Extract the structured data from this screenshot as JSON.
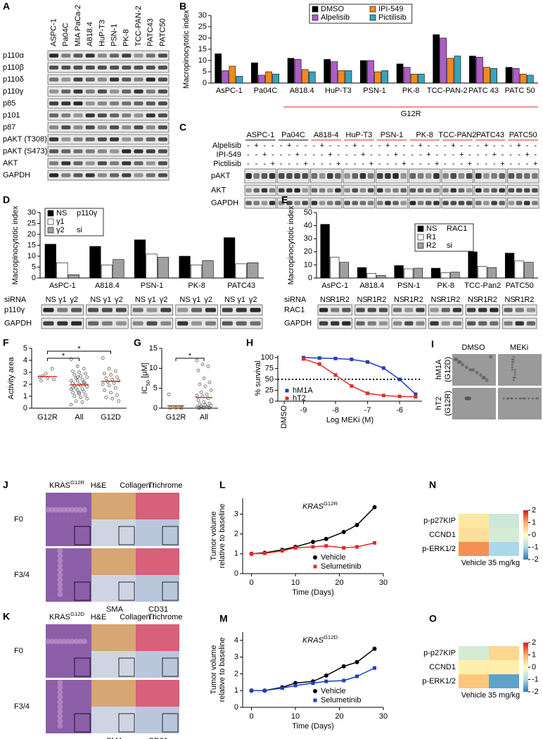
{
  "panel_A": {
    "label": "A",
    "lanes": [
      "ASPC-1",
      "Pa04C",
      "MIA PaCa-2",
      "A818.4",
      "HuP-T3",
      "PSN-1",
      "PK-8",
      "TCC-PAN-2",
      "PATC43",
      "PATC50"
    ],
    "lane_colors": [
      "#000000",
      "#000000",
      "#000000",
      "#e0201b",
      "#e0201b",
      "#e0201b",
      "#e0201b",
      "#e0201b",
      "#e0201b",
      "#e0201b"
    ],
    "rows": [
      "p110α",
      "p110β",
      "p110δ",
      "p110γ",
      "p85",
      "p101",
      "p87",
      "pAKT (T308)",
      "pAKT (S473)",
      "AKT",
      "GAPDH"
    ]
  },
  "panel_C": {
    "label": "C",
    "groups": [
      "ASPC-1",
      "Pa04C",
      "A818-4",
      "HuP-T3",
      "PSN-1",
      "PK-8",
      "TCC-PAN2",
      "PATC43",
      "PATC50"
    ],
    "group_colors": [
      "#000000",
      "#000000",
      "#e0201b",
      "#e0201b",
      "#e0201b",
      "#e0201b",
      "#e0201b",
      "#e0201b",
      "#e0201b"
    ],
    "treatments": [
      {
        "name": "Alpelisib",
        "signs": [
          "-",
          "+",
          "-",
          "-"
        ]
      },
      {
        "name": "IPI-549",
        "signs": [
          "-",
          "-",
          "+",
          "-"
        ]
      },
      {
        "name": "Pictilisib",
        "signs": [
          "-",
          "-",
          "-",
          "+"
        ]
      }
    ],
    "rows": [
      "pAKT",
      "AKT",
      "GAPDH"
    ]
  },
  "panel_I": {
    "label": "I",
    "columns": [
      "DMSO",
      "MEKi"
    ],
    "rows": [
      {
        "name": "hM1A",
        "mutation": "(G12D)",
        "color": "#2233cc"
      },
      {
        "name": "hT2",
        "mutation": "(G12R)",
        "color": "#1a9a3a"
      }
    ]
  },
  "panel_J": {
    "label": "J",
    "title": {
      "base": "KRAS",
      "sup": "G12R"
    },
    "stains": [
      "H&E",
      "Collagen I",
      "Trichrome"
    ],
    "rows": [
      "F0",
      "F3/4"
    ],
    "insets": [
      "SMA",
      "CD31"
    ]
  },
  "panel_K": {
    "label": "K",
    "title": {
      "base": "KRAS",
      "sup": "G12D"
    },
    "stains": [
      "H&E",
      "Collagen I",
      "Trichrome"
    ],
    "rows": [
      "F0",
      "F3/4"
    ],
    "insets": [
      "SMA",
      "CD31"
    ]
  },
  "chart_data": [
    {
      "type": "bar",
      "label": "B",
      "y_label": "Macropinocytotic index",
      "categories": [
        "AsPC-1",
        "Pa04C",
        "A818.4",
        "HuP-T3",
        "PSN-1",
        "PK-8",
        "TCC-PAN-2",
        "PATC 43",
        "PATC 50"
      ],
      "series": [
        {
          "name": "DMSO",
          "color": "#000000",
          "values": [
            13,
            9,
            11,
            10.5,
            10,
            8.5,
            21.5,
            12,
            7
          ]
        },
        {
          "name": "Alpelisib",
          "color": "#b05cc8",
          "values": [
            5.5,
            3.5,
            10.5,
            9.5,
            10,
            7,
            20,
            11.5,
            6.5
          ]
        },
        {
          "name": "IPI-549",
          "color": "#f28a1e",
          "values": [
            7.5,
            5,
            6,
            5.5,
            5,
            4,
            11,
            7,
            4
          ]
        },
        {
          "name": "Pictilisib",
          "color": "#3ba3b8",
          "values": [
            3,
            4,
            5,
            5.5,
            5.5,
            4,
            12,
            6.5,
            3.5
          ]
        }
      ],
      "ylim": [
        0,
        30
      ],
      "yticks": [
        0,
        5,
        10,
        15,
        20,
        25,
        30
      ],
      "group_label": "G12R",
      "group_color": "#e0201b"
    },
    {
      "type": "bar",
      "label": "D",
      "y_label": "Macropinocytotic index",
      "categories": [
        "AsPC-1",
        "A818.4",
        "PSN-1",
        "PK-8",
        "PATC43"
      ],
      "category_colors": [
        "#000000",
        "#e0201b",
        "#e0201b",
        "#e0201b",
        "#e0201b"
      ],
      "series": [
        {
          "name": "NS",
          "color": "#000000",
          "values": [
            15.5,
            14.5,
            17.5,
            10,
            18.5
          ]
        },
        {
          "name": "γ1",
          "color": "#ffffff",
          "values": [
            7,
            6,
            11,
            6,
            6.5
          ]
        },
        {
          "name": "γ2",
          "color": "#a0a0a0",
          "values": [
            1.5,
            8.5,
            9.5,
            8,
            7
          ]
        }
      ],
      "legend_title": "p110γ",
      "legend_sub": "si",
      "ylim": [
        0,
        30
      ],
      "yticks": [
        0,
        5,
        10,
        15,
        20,
        25,
        30
      ],
      "sirna_label": "siRNA",
      "sirna": [
        "NS",
        "γ1",
        "γ2"
      ],
      "blot_rows": [
        "p110γ",
        "GAPDH"
      ]
    },
    {
      "type": "bar",
      "label": "E",
      "y_label": "Macropinocytotic index",
      "categories": [
        "AsPC-1",
        "A818.4",
        "PSN-1",
        "PK-8",
        "TCC-Pan2",
        "PATC50"
      ],
      "category_colors": [
        "#000000",
        "#e0201b",
        "#e0201b",
        "#e0201b",
        "#e0201b",
        "#e0201b"
      ],
      "series": [
        {
          "name": "NS",
          "color": "#000000",
          "values": [
            41,
            8,
            9.5,
            7.5,
            20,
            19
          ]
        },
        {
          "name": "R1",
          "color": "#ffffff",
          "values": [
            16,
            3.5,
            7,
            4,
            9,
            13
          ]
        },
        {
          "name": "R2",
          "color": "#a0a0a0",
          "values": [
            12,
            2,
            7.5,
            4.5,
            8,
            12
          ]
        }
      ],
      "legend_title": "RAC1",
      "legend_sub": "si",
      "ylim": [
        0,
        50
      ],
      "yticks": [
        0,
        10,
        20,
        30,
        40,
        50
      ],
      "sirna_label": "siRNA",
      "sirna": [
        "NS",
        "R1",
        "R2"
      ],
      "blot_rows": [
        "RAC1",
        "GAPDH"
      ]
    },
    {
      "type": "strip",
      "label": "F",
      "y_label": "Activity area",
      "categories": [
        "G12R",
        "All",
        "G12D"
      ],
      "points": [
        [
          2.6,
          2.9,
          3.3,
          2.3,
          2.5,
          2.4,
          2.7
        ],
        [
          4.1,
          3.5,
          3.3,
          3.1,
          3.0,
          2.9,
          2.8,
          2.7,
          2.6,
          2.5,
          2.4,
          2.3,
          2.3,
          2.2,
          2.1,
          2.0,
          2.0,
          1.9,
          1.9,
          1.8,
          1.7,
          1.6,
          1.6,
          1.5,
          1.4,
          1.3,
          1.2,
          1.1,
          1.0,
          0.9,
          0.8,
          0.6,
          0.5,
          0.3,
          2.6,
          2.1,
          1.7,
          1.3
        ],
        [
          4.2,
          3.3,
          3.1,
          2.9,
          2.8,
          2.6,
          2.5,
          2.4,
          2.3,
          2.2,
          2.1,
          2.0,
          1.9,
          1.7,
          1.5,
          1.3,
          1.1,
          0.9,
          0.8,
          0.6
        ]
      ],
      "means": [
        2.65,
        1.95,
        2.25
      ],
      "mean_color": "#e32b2b",
      "ylim": [
        0,
        5
      ],
      "yticks": [
        0,
        1,
        2,
        3,
        4,
        5
      ],
      "significance": [
        {
          "label": "*",
          "between": [
            "G12R",
            "All"
          ]
        },
        {
          "label": "*",
          "between": [
            "G12R",
            "G12D"
          ]
        }
      ]
    },
    {
      "type": "strip",
      "label": "G",
      "y_label": {
        "base": "IC",
        "sub": "50",
        "rest": " [μM]"
      },
      "categories": [
        "G12R",
        "All"
      ],
      "points": [
        [
          3.5,
          0.3,
          0.2,
          0.1,
          0.1,
          0.05
        ],
        [
          12,
          11,
          10.5,
          9.5,
          7.5,
          6.5,
          6,
          5.5,
          4.5,
          4,
          3.5,
          3.2,
          3,
          2.5,
          2,
          1.5,
          1.2,
          1,
          0.8,
          0.6,
          0.5,
          0.4,
          0.3,
          0.2,
          0.2,
          0.1,
          0.1,
          0.1,
          0.05
        ]
      ],
      "means": [
        0.6,
        2.7
      ],
      "mean_color": "#e32b2b",
      "ylim": [
        0,
        15
      ],
      "yticks": [
        0,
        5,
        10,
        15
      ],
      "significance": [
        {
          "label": "*",
          "between": [
            "G12R",
            "All"
          ]
        }
      ]
    },
    {
      "type": "line",
      "label": "H",
      "y_label": "% survival",
      "x_label": "Log MEKi (M)",
      "x": [
        -9,
        -8.5,
        -8,
        -7.5,
        -7,
        -6.5,
        -6,
        -5.5
      ],
      "series": [
        {
          "name": "hM1A",
          "color": "#1a3fbf",
          "marker": "square",
          "values": [
            100,
            99,
            98,
            96,
            90,
            76,
            50,
            16
          ]
        },
        {
          "name": "hT2",
          "color": "#e32b2b",
          "marker": "square",
          "values": [
            97,
            85,
            60,
            35,
            18,
            13,
            11,
            10
          ]
        }
      ],
      "xlim": [
        -9.8,
        -5.3
      ],
      "xticks": [
        {
          "value": -9.6,
          "label": "DMSO"
        },
        -9,
        -8,
        -7,
        -6
      ],
      "ylim": [
        0,
        105
      ],
      "yticks": [
        0,
        25,
        50,
        75,
        100
      ],
      "hline": 50
    },
    {
      "type": "line",
      "label": "L",
      "title": {
        "italic": "KRAS",
        "sup": "G12R"
      },
      "y_label_lines": [
        "Tumor volume",
        "relative to baseline"
      ],
      "x_label": "Time (Days)",
      "x": [
        0,
        3,
        7,
        10,
        14,
        17,
        21,
        24,
        28
      ],
      "series": [
        {
          "name": "Vehicle",
          "color": "#000000",
          "marker": "circle",
          "values": [
            1,
            1.05,
            1.2,
            1.35,
            1.6,
            1.75,
            2.1,
            2.45,
            3.35
          ]
        },
        {
          "name": "Selumetinib",
          "color": "#e32b2b",
          "marker": "square",
          "values": [
            1,
            1.02,
            1.15,
            1.3,
            1.35,
            1.4,
            1.3,
            1.35,
            1.55
          ]
        }
      ],
      "xlim": [
        -2,
        30
      ],
      "xticks": [
        0,
        10,
        20,
        30
      ],
      "ylim": [
        0,
        3.8
      ],
      "yticks": [
        0,
        1,
        2,
        3
      ]
    },
    {
      "type": "line",
      "label": "M",
      "title": {
        "italic": "KRAS",
        "sup": "G12D"
      },
      "y_label_lines": [
        "Tumor volume",
        "relative to baseline"
      ],
      "x_label": "Time (Days)",
      "x": [
        0,
        3,
        7,
        10,
        14,
        17,
        21,
        24,
        28
      ],
      "series": [
        {
          "name": "Vehicle",
          "color": "#000000",
          "marker": "circle",
          "values": [
            1,
            1,
            1.2,
            1.45,
            1.55,
            1.9,
            2.45,
            2.7,
            3.5
          ]
        },
        {
          "name": "Selumetinib",
          "color": "#1a3fbf",
          "marker": "square",
          "values": [
            1,
            1,
            1.15,
            1.3,
            1.45,
            1.55,
            1.6,
            1.85,
            2.35
          ]
        }
      ],
      "xlim": [
        -2,
        30
      ],
      "xticks": [
        0,
        10,
        20,
        30
      ],
      "ylim": [
        0,
        4.5
      ],
      "yticks": [
        0,
        1,
        2,
        3,
        4
      ]
    },
    {
      "type": "heatmap",
      "label": "N",
      "rows": [
        "p-p27KIP",
        "CCND1",
        "p-ERK1/2"
      ],
      "columns": [
        "Vehicle",
        "35 mg/kg"
      ],
      "values": [
        [
          0.3,
          -0.6
        ],
        [
          0.4,
          -0.5
        ],
        [
          1.2,
          -1.0
        ]
      ],
      "clim": [
        -2,
        2
      ],
      "cticks": [
        2,
        1,
        0,
        -1,
        -2
      ]
    },
    {
      "type": "heatmap",
      "label": "O",
      "rows": [
        "p-p27KIP",
        "CCND1",
        "p-ERK1/2"
      ],
      "columns": [
        "Vehicle",
        "35 mg/kg"
      ],
      "values": [
        [
          -0.5,
          0.5
        ],
        [
          0.2,
          0.2
        ],
        [
          0.7,
          -1.6
        ]
      ],
      "clim": [
        -2,
        2
      ],
      "cticks": [
        2,
        1,
        0,
        -1,
        -2
      ]
    }
  ]
}
